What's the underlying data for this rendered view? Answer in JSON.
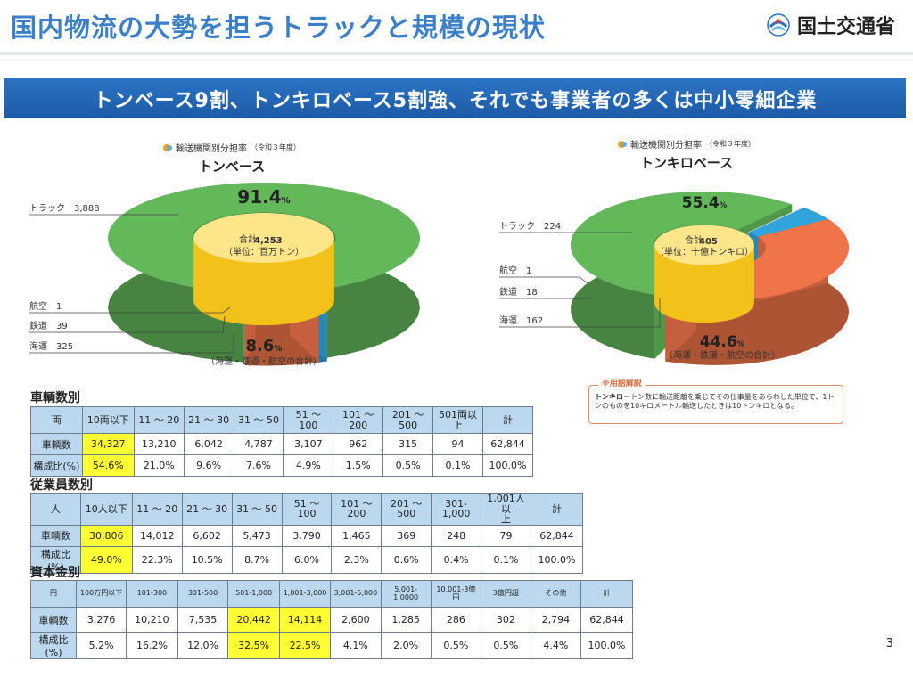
{
  "header": {
    "title": "国内物流の大勢を担うトラックと規模の現状",
    "logo_text": "国土交通省"
  },
  "banner": "トンベース9割、トンキロベース5割強、それでも事業者の多くは中小零細企業",
  "chart_data": [
    {
      "type": "pie",
      "subtitle": "輸送機関別分担率",
      "year": "（令和３年度）",
      "title": "トンベース",
      "total_label": "合計",
      "total_value": "4,253",
      "unit": "（単位：百万トン）",
      "slices": [
        {
          "name": "トラック",
          "value": 3888,
          "label": "トラック　3,888",
          "color": "#63b85a"
        },
        {
          "name": "航空",
          "value": 1,
          "label": "航空　1",
          "color": "#ffffff"
        },
        {
          "name": "鉄道",
          "value": 39,
          "label": "鉄道　39",
          "color": "#2fa5dc"
        },
        {
          "name": "海運",
          "value": 325,
          "label": "海運　325",
          "color": "#f0744a"
        }
      ],
      "major_pct": "91.4",
      "minor_pct": "8.6",
      "pct_sign": "%",
      "minor_note": "（海運・鉄道・航空の合計）"
    },
    {
      "type": "pie",
      "subtitle": "輸送機関別分担率",
      "year": "（令和３年度）",
      "title": "トンキロベース",
      "total_label": "合計",
      "total_value": "405",
      "unit": "（単位：十億トンキロ）",
      "slices": [
        {
          "name": "トラック",
          "value": 224,
          "label": "トラック　224",
          "color": "#63b85a"
        },
        {
          "name": "航空",
          "value": 1,
          "label": "航空　1",
          "color": "#ffffff"
        },
        {
          "name": "鉄道",
          "value": 18,
          "label": "鉄道　18",
          "color": "#2fa5dc"
        },
        {
          "name": "海運",
          "value": 162,
          "label": "海運　162",
          "color": "#f0744a"
        }
      ],
      "major_pct": "55.4",
      "minor_pct": "44.6",
      "pct_sign": "%",
      "minor_note": "（海運・鉄道・航空の合計）"
    }
  ],
  "glossary": {
    "title": "※用語解説",
    "term": "トンキロ",
    "text": "＝トン数に輸送距離を乗じてその仕事量をあらわした単位で、1トンのものを10キロメートル輸送したときは10トンキロとなる。"
  },
  "tables": [
    {
      "title": "車輌数別",
      "headers": [
        "両",
        "10両以下",
        "11 ～ 20",
        "21 ～ 30",
        "31 ～ 50",
        "51 ～ 100",
        "101 ～\n200",
        "201 ～\n500",
        "501両以上",
        "計"
      ],
      "rows": [
        [
          "車輌数",
          "34,327",
          "13,210",
          "6,042",
          "4,787",
          "3,107",
          "962",
          "315",
          "94",
          "62,844"
        ],
        [
          "構成比(%)",
          "54.6%",
          "21.0%",
          "9.6%",
          "7.6%",
          "4.9%",
          "1.5%",
          "0.5%",
          "0.1%",
          "100.0%"
        ]
      ],
      "highlight_cols": [
        1
      ]
    },
    {
      "title": "従業員数別",
      "headers": [
        "人",
        "10人以下",
        "11 ～ 20",
        "21 ～ 30",
        "31 ～ 50",
        "51 ～ 100",
        "101 ～\n200",
        "201 ～\n500",
        "301-1,000",
        "1,001人以\n上",
        "計"
      ],
      "rows": [
        [
          "車輌数",
          "30,806",
          "14,012",
          "6,602",
          "5,473",
          "3,790",
          "1,465",
          "369",
          "248",
          "79",
          "62,844"
        ],
        [
          "構成比(%)",
          "49.0%",
          "22.3%",
          "10.5%",
          "8.7%",
          "6.0%",
          "2.3%",
          "0.6%",
          "0.4%",
          "0.1%",
          "100.0%"
        ]
      ],
      "highlight_cols": [
        1
      ]
    },
    {
      "title": "資本金別",
      "headers": [
        "円",
        "100万円以下",
        "101-300",
        "301-500",
        "501-1,000",
        "1,001-3,000",
        "3,001-5,000",
        "5,001-1,0000",
        "10,001-3億円",
        "3億円超",
        "その他",
        "計"
      ],
      "rows": [
        [
          "車輌数",
          "3,276",
          "10,210",
          "7,535",
          "20,442",
          "14,114",
          "2,600",
          "1,285",
          "286",
          "302",
          "2,794",
          "62,844"
        ],
        [
          "構成比\n(%)",
          "5.2%",
          "16.2%",
          "12.0%",
          "32.5%",
          "22.5%",
          "4.1%",
          "2.0%",
          "0.5%",
          "0.5%",
          "4.4%",
          "100.0%"
        ]
      ],
      "highlight_cols": [
        4,
        5
      ]
    }
  ],
  "page_number": "3"
}
